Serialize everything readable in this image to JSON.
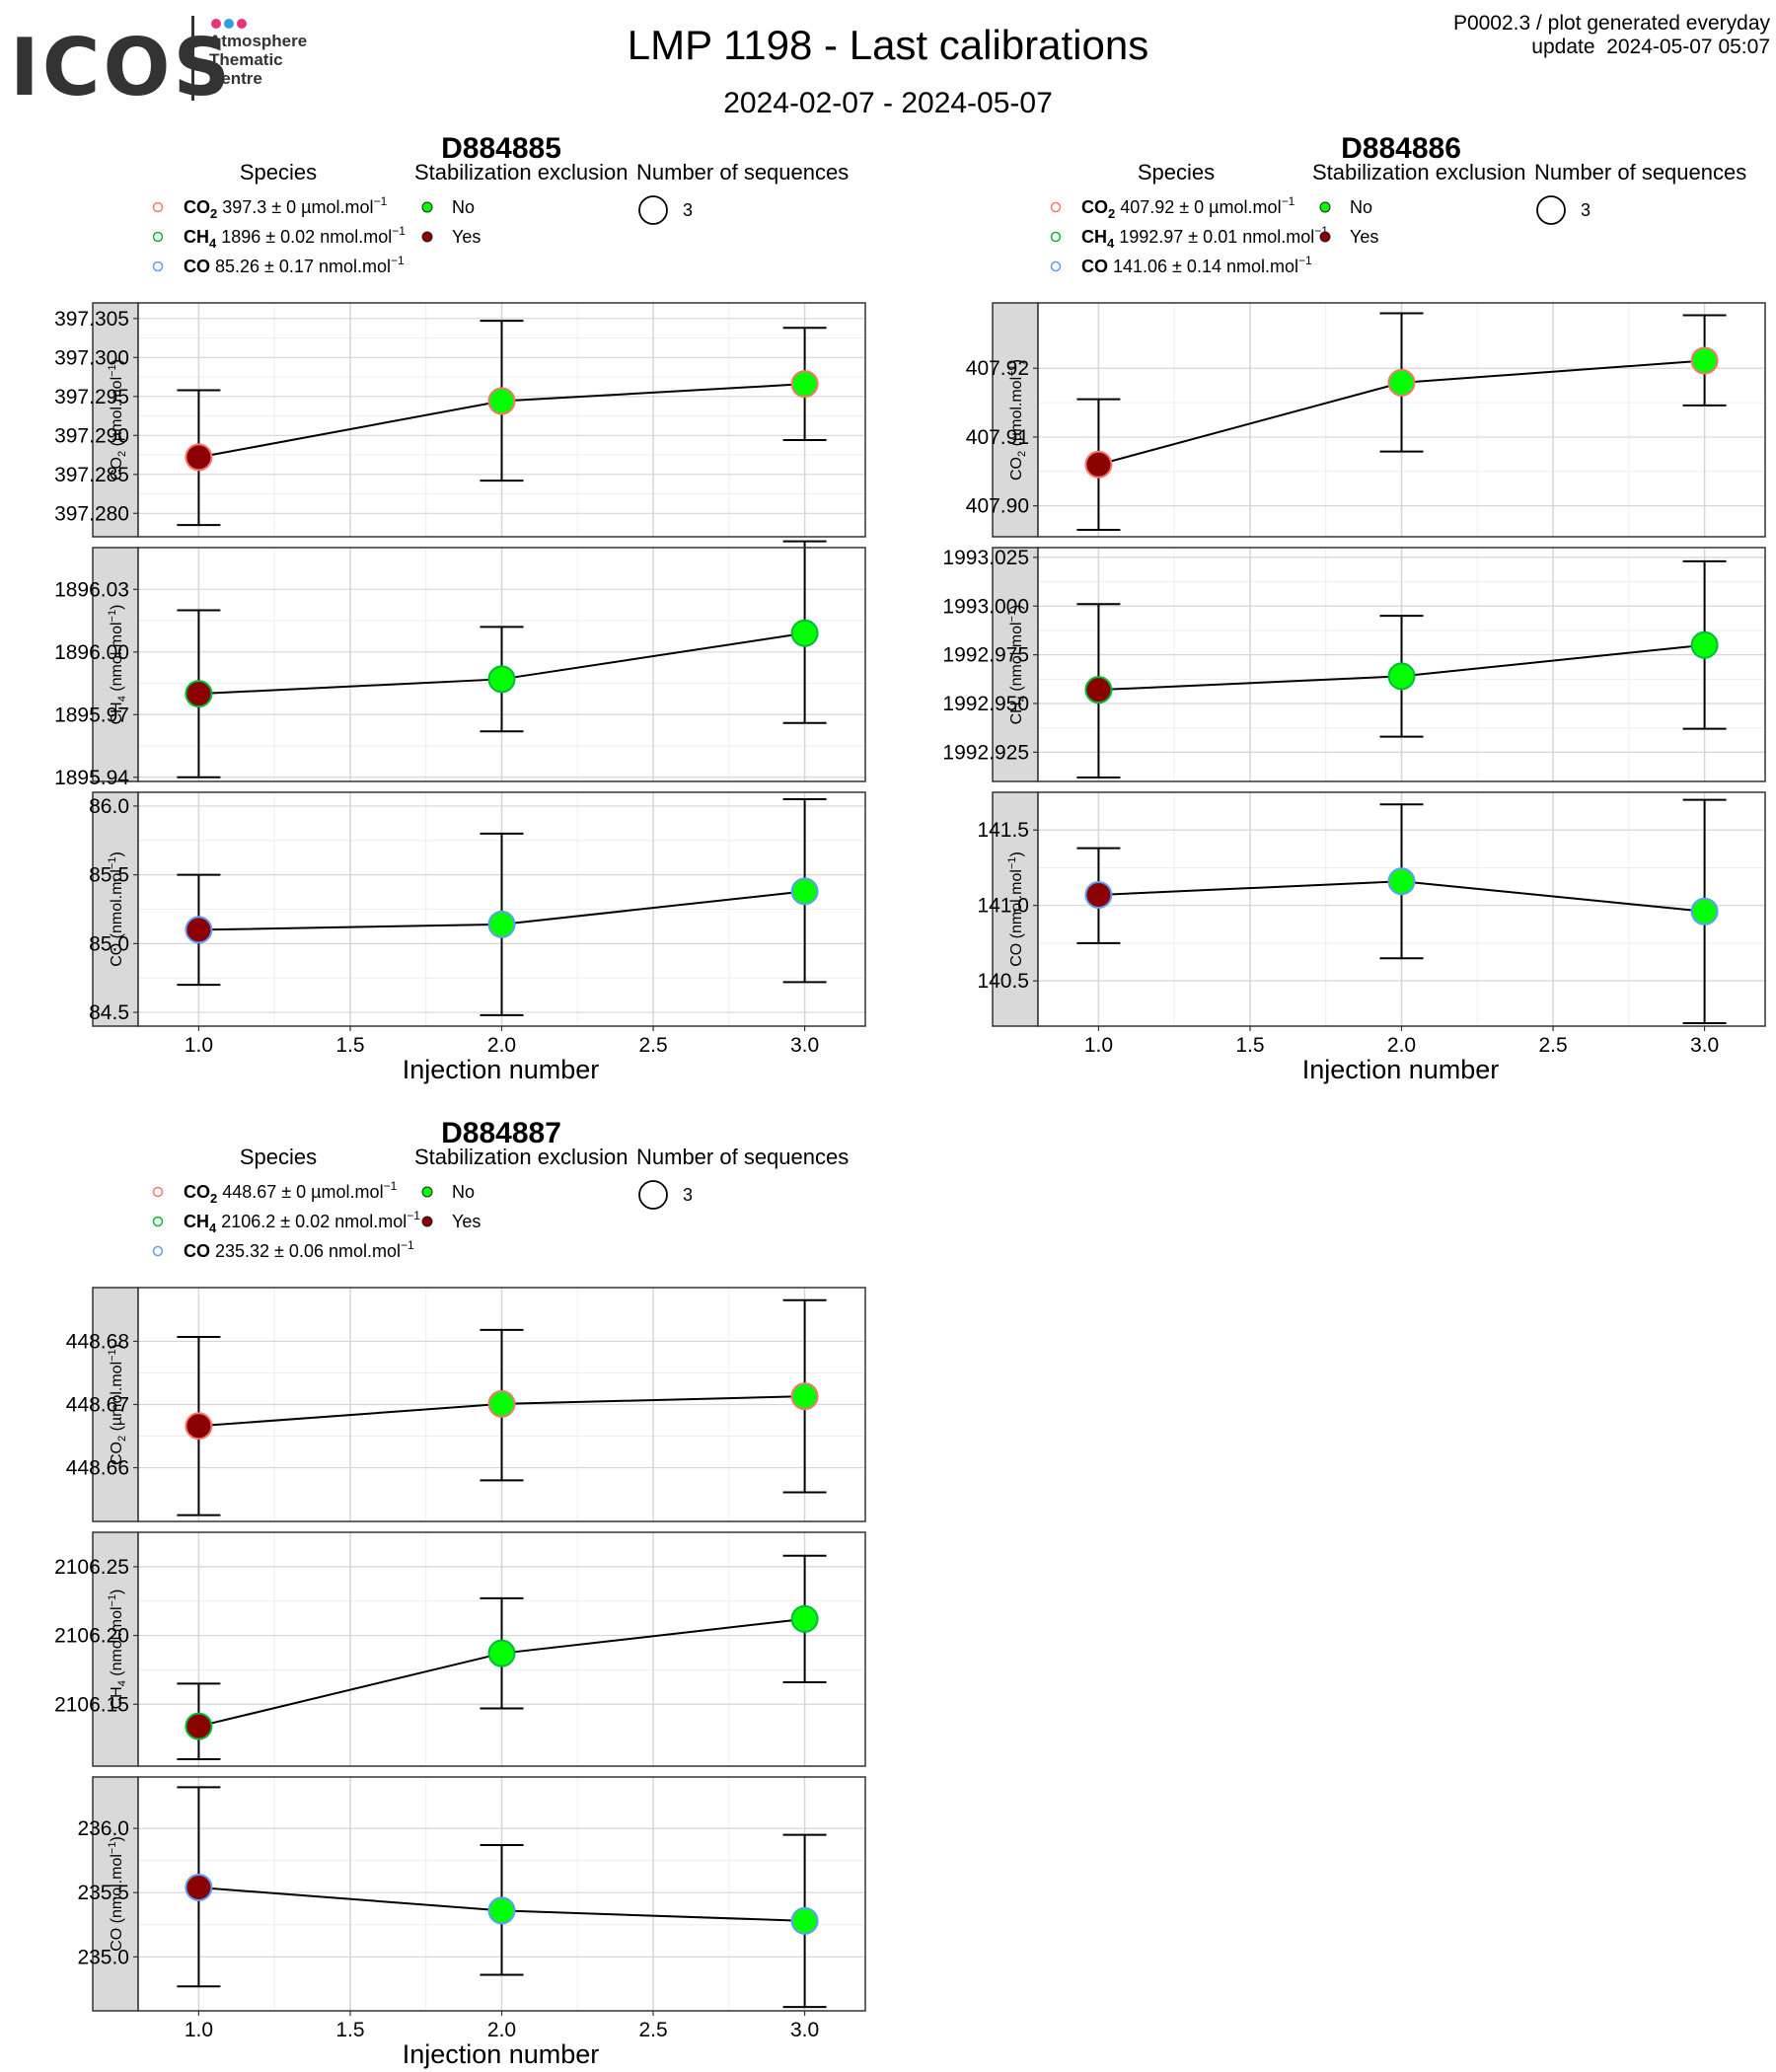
{
  "logo": {
    "text": "ICOS",
    "line1": "Atmosphere",
    "line2": "Thematic",
    "line3": "Centre",
    "dot_colors": [
      "#e6337a",
      "#2e9fd8",
      "#e6337a"
    ]
  },
  "header": {
    "title": "LMP 1198 - Last calibrations",
    "date_range": "2024-02-07 - 2024-05-07",
    "plot_id": "P0002.3 / plot generated everyday",
    "update_label": "update",
    "update_time": "2024-05-07 05:07"
  },
  "colors": {
    "no_exclusion": "#00ff00",
    "yes_exclusion": "#8b0000",
    "co2": "#f8766d",
    "ch4": "#00ba38",
    "co": "#619cff",
    "panel_strip": "#d9d9d9"
  },
  "legend_titles": {
    "species": "Species",
    "stabilization": "Stabilization exclusion",
    "sequences": "Number of sequences"
  },
  "legend_stab": [
    "No",
    "Yes"
  ],
  "legend_seq": "3",
  "xaxis_label": "Injection number",
  "chart_data": [
    {
      "type": "scatter",
      "title": "D884885",
      "legend_species": [
        {
          "code": "CO",
          "sub": "2",
          "stat": "397.3 ± 0 µmol.mol",
          "exp": "−1"
        },
        {
          "code": "CH",
          "sub": "4",
          "stat": "1896 ± 0.02 nmol.mol",
          "exp": "−1"
        },
        {
          "code": "CO",
          "sub": "",
          "stat": "85.26 ± 0.17 nmol.mol",
          "exp": "−1"
        }
      ],
      "x_ticks": [
        "1.0",
        "1.5",
        "2.0",
        "2.5",
        "3.0"
      ],
      "xlim": [
        0.8,
        3.2
      ],
      "panels": [
        {
          "label": "CO",
          "sub": "2",
          "unit": " (µmol.mol",
          "exp": "−1",
          "close": ")",
          "ylim": [
            397.277,
            397.307
          ],
          "y_ticks": [
            {
              "v": 397.305,
              "t": "397.305"
            },
            {
              "v": 397.3,
              "t": "397.300"
            },
            {
              "v": 397.295,
              "t": "397.295"
            },
            {
              "v": 397.29,
              "t": "397.290"
            },
            {
              "v": 397.285,
              "t": "397.285"
            },
            {
              "v": 397.28,
              "t": "397.280"
            }
          ],
          "points": [
            {
              "x": 1,
              "y": 397.2872,
              "lo": 397.2785,
              "hi": 397.2958,
              "excluded": true
            },
            {
              "x": 2,
              "y": 397.2944,
              "lo": 397.2842,
              "hi": 397.3047,
              "excluded": false
            },
            {
              "x": 3,
              "y": 397.2966,
              "lo": 397.2894,
              "hi": 397.3038,
              "excluded": false
            }
          ]
        },
        {
          "label": "CH",
          "sub": "4",
          "unit": " (nmol.mol",
          "exp": "−1",
          "close": ")",
          "ylim": [
            1895.938,
            1896.05
          ],
          "y_ticks": [
            {
              "v": 1896.03,
              "t": "1896.03"
            },
            {
              "v": 1896.0,
              "t": "1896.00"
            },
            {
              "v": 1895.97,
              "t": "1895.97"
            },
            {
              "v": 1895.94,
              "t": "1895.94"
            }
          ],
          "points": [
            {
              "x": 1,
              "y": 1895.98,
              "lo": 1895.94,
              "hi": 1896.02,
              "excluded": true
            },
            {
              "x": 2,
              "y": 1895.987,
              "lo": 1895.962,
              "hi": 1896.012,
              "excluded": false
            },
            {
              "x": 3,
              "y": 1896.009,
              "lo": 1895.966,
              "hi": 1896.053,
              "excluded": false
            }
          ]
        },
        {
          "label": "CO",
          "sub": "",
          "unit": " (nmol.mol",
          "exp": "−1",
          "close": ")",
          "ylim": [
            84.4,
            86.1
          ],
          "y_ticks": [
            {
              "v": 86.0,
              "t": "86.0"
            },
            {
              "v": 85.5,
              "t": "85.5"
            },
            {
              "v": 85.0,
              "t": "85.0"
            },
            {
              "v": 84.5,
              "t": "84.5"
            }
          ],
          "points": [
            {
              "x": 1,
              "y": 85.1,
              "lo": 84.7,
              "hi": 85.5,
              "excluded": true
            },
            {
              "x": 2,
              "y": 85.14,
              "lo": 84.48,
              "hi": 85.8,
              "excluded": false
            },
            {
              "x": 3,
              "y": 85.38,
              "lo": 84.72,
              "hi": 86.05,
              "excluded": false
            }
          ]
        }
      ]
    },
    {
      "type": "scatter",
      "title": "D884886",
      "legend_species": [
        {
          "code": "CO",
          "sub": "2",
          "stat": "407.92 ± 0 µmol.mol",
          "exp": "−1"
        },
        {
          "code": "CH",
          "sub": "4",
          "stat": "1992.97 ± 0.01 nmol.mol",
          "exp": "−1"
        },
        {
          "code": "CO",
          "sub": "",
          "stat": "141.06 ± 0.14 nmol.mol",
          "exp": "−1"
        }
      ],
      "x_ticks": [
        "1.0",
        "1.5",
        "2.0",
        "2.5",
        "3.0"
      ],
      "xlim": [
        0.8,
        3.2
      ],
      "panels": [
        {
          "label": "CO",
          "sub": "2",
          "unit": " (µmol.mol",
          "exp": "−1",
          "close": ")",
          "ylim": [
            407.8955,
            407.9295
          ],
          "y_ticks": [
            {
              "v": 407.92,
              "t": "407.92"
            },
            {
              "v": 407.91,
              "t": "407.91"
            },
            {
              "v": 407.9,
              "t": "407.90"
            }
          ],
          "points": [
            {
              "x": 1,
              "y": 407.906,
              "lo": 407.8965,
              "hi": 407.9155,
              "excluded": true
            },
            {
              "x": 2,
              "y": 407.9179,
              "lo": 407.9079,
              "hi": 407.928,
              "excluded": false
            },
            {
              "x": 3,
              "y": 407.9211,
              "lo": 407.9146,
              "hi": 407.9277,
              "excluded": false
            }
          ]
        },
        {
          "label": "CH",
          "sub": "4",
          "unit": " (nmol.mol",
          "exp": "−1",
          "close": ")",
          "ylim": [
            1992.91,
            1993.03
          ],
          "y_ticks": [
            {
              "v": 1993.025,
              "t": "1993.025"
            },
            {
              "v": 1993.0,
              "t": "1993.000"
            },
            {
              "v": 1992.975,
              "t": "1992.975"
            },
            {
              "v": 1992.95,
              "t": "1992.950"
            },
            {
              "v": 1992.925,
              "t": "1992.925"
            }
          ],
          "points": [
            {
              "x": 1,
              "y": 1992.957,
              "lo": 1992.912,
              "hi": 1993.001,
              "excluded": true
            },
            {
              "x": 2,
              "y": 1992.964,
              "lo": 1992.933,
              "hi": 1992.995,
              "excluded": false
            },
            {
              "x": 3,
              "y": 1992.98,
              "lo": 1992.937,
              "hi": 1993.023,
              "excluded": false
            }
          ]
        },
        {
          "label": "CO",
          "sub": "",
          "unit": " (nmol.mol",
          "exp": "−1",
          "close": ")",
          "ylim": [
            140.2,
            141.75
          ],
          "y_ticks": [
            {
              "v": 141.5,
              "t": "141.5"
            },
            {
              "v": 141.0,
              "t": "141.0"
            },
            {
              "v": 140.5,
              "t": "140.5"
            }
          ],
          "points": [
            {
              "x": 1,
              "y": 141.07,
              "lo": 140.75,
              "hi": 141.38,
              "excluded": true
            },
            {
              "x": 2,
              "y": 141.16,
              "lo": 140.65,
              "hi": 141.67,
              "excluded": false
            },
            {
              "x": 3,
              "y": 140.96,
              "lo": 140.22,
              "hi": 141.7,
              "excluded": false
            }
          ]
        }
      ]
    },
    {
      "type": "scatter",
      "title": "D884887",
      "legend_species": [
        {
          "code": "CO",
          "sub": "2",
          "stat": "448.67 ± 0 µmol.mol",
          "exp": "−1"
        },
        {
          "code": "CH",
          "sub": "4",
          "stat": "2106.2 ± 0.02 nmol.mol",
          "exp": "−1"
        },
        {
          "code": "CO",
          "sub": "",
          "stat": "235.32 ± 0.06 nmol.mol",
          "exp": "−1"
        }
      ],
      "x_ticks": [
        "1.0",
        "1.5",
        "2.0",
        "2.5",
        "3.0"
      ],
      "xlim": [
        0.8,
        3.2
      ],
      "panels": [
        {
          "label": "CO",
          "sub": "2",
          "unit": " (µmol.mol",
          "exp": "−1",
          "close": ")",
          "ylim": [
            448.6515,
            448.6885
          ],
          "y_ticks": [
            {
              "v": 448.68,
              "t": "448.68"
            },
            {
              "v": 448.67,
              "t": "448.67"
            },
            {
              "v": 448.66,
              "t": "448.66"
            }
          ],
          "points": [
            {
              "x": 1,
              "y": 448.6666,
              "lo": 448.6525,
              "hi": 448.6807,
              "excluded": true
            },
            {
              "x": 2,
              "y": 448.6701,
              "lo": 448.658,
              "hi": 448.6818,
              "excluded": false
            },
            {
              "x": 3,
              "y": 448.6713,
              "lo": 448.6561,
              "hi": 448.6865,
              "excluded": false
            }
          ]
        },
        {
          "label": "CH",
          "sub": "4",
          "unit": " (nmol.mol",
          "exp": "−1",
          "close": ")",
          "ylim": [
            2106.105,
            2106.275
          ],
          "y_ticks": [
            {
              "v": 2106.25,
              "t": "2106.25"
            },
            {
              "v": 2106.2,
              "t": "2106.20"
            },
            {
              "v": 2106.15,
              "t": "2106.15"
            }
          ],
          "points": [
            {
              "x": 1,
              "y": 2106.134,
              "lo": 2106.11,
              "hi": 2106.165,
              "excluded": true
            },
            {
              "x": 2,
              "y": 2106.187,
              "lo": 2106.147,
              "hi": 2106.227,
              "excluded": false
            },
            {
              "x": 3,
              "y": 2106.212,
              "lo": 2106.166,
              "hi": 2106.258,
              "excluded": false
            }
          ]
        },
        {
          "label": "CO",
          "sub": "",
          "unit": " (nmol.mol",
          "exp": "−1",
          "close": ")",
          "ylim": [
            234.58,
            236.4
          ],
          "y_ticks": [
            {
              "v": 236.0,
              "t": "236.0"
            },
            {
              "v": 235.5,
              "t": "235.5"
            },
            {
              "v": 235.0,
              "t": "235.0"
            }
          ],
          "points": [
            {
              "x": 1,
              "y": 235.54,
              "lo": 234.77,
              "hi": 236.32,
              "excluded": true
            },
            {
              "x": 2,
              "y": 235.36,
              "lo": 234.86,
              "hi": 235.87,
              "excluded": false
            },
            {
              "x": 3,
              "y": 235.28,
              "lo": 234.61,
              "hi": 235.95,
              "excluded": false
            }
          ]
        }
      ]
    }
  ]
}
